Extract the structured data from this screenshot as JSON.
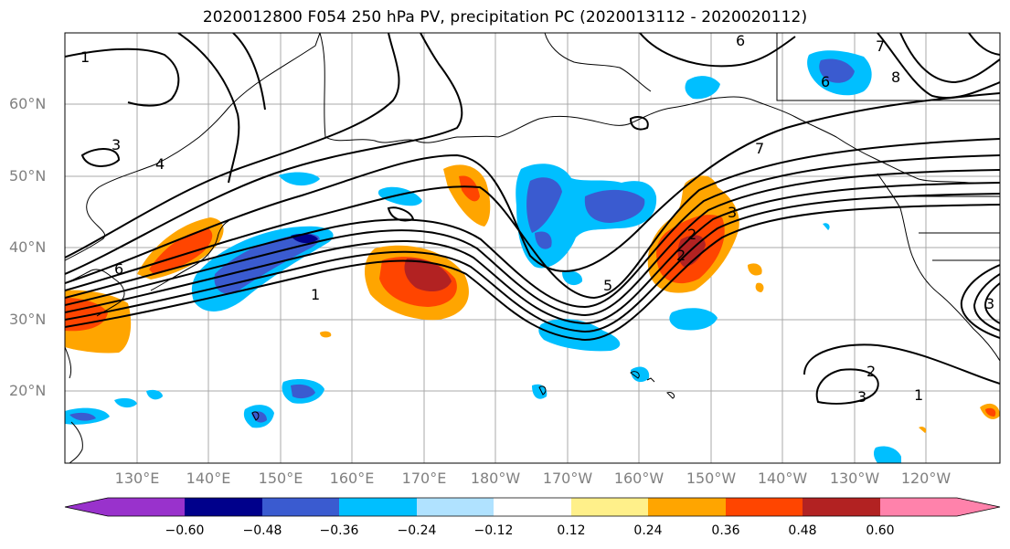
{
  "title": "2020012800 F054 250 hPa PV, precipitation PC (2020013112 - 2020020112)",
  "map": {
    "lat_labels": [
      "60°N",
      "50°N",
      "40°N",
      "30°N",
      "20°N"
    ],
    "lon_labels": [
      "130°E",
      "140°E",
      "150°E",
      "160°E",
      "170°E",
      "180°W",
      "170°W",
      "160°W",
      "150°W",
      "140°W",
      "130°W",
      "120°W"
    ],
    "contour_labels": [
      "1",
      "2",
      "3",
      "4",
      "5",
      "6",
      "7",
      "8",
      "6",
      "3",
      "1",
      "2",
      "3",
      "1",
      "6",
      "2",
      "3",
      "7"
    ],
    "layers": [
      "250 hPa PV contours",
      "precipitation PC shading",
      "coastlines",
      "gridlines"
    ]
  },
  "colorbar": {
    "tick_labels": [
      "−0.60",
      "−0.48",
      "−0.36",
      "−0.24",
      "−0.12",
      "0.12",
      "0.24",
      "0.36",
      "0.48",
      "0.60"
    ],
    "colors": [
      "#9932cc",
      "#00008b",
      "#3a5bd0",
      "#00bfff",
      "#b0e2ff",
      "#ffffff",
      "#fff08a",
      "#ffa500",
      "#ff4500",
      "#b22222",
      "#ff82ab"
    ]
  }
}
